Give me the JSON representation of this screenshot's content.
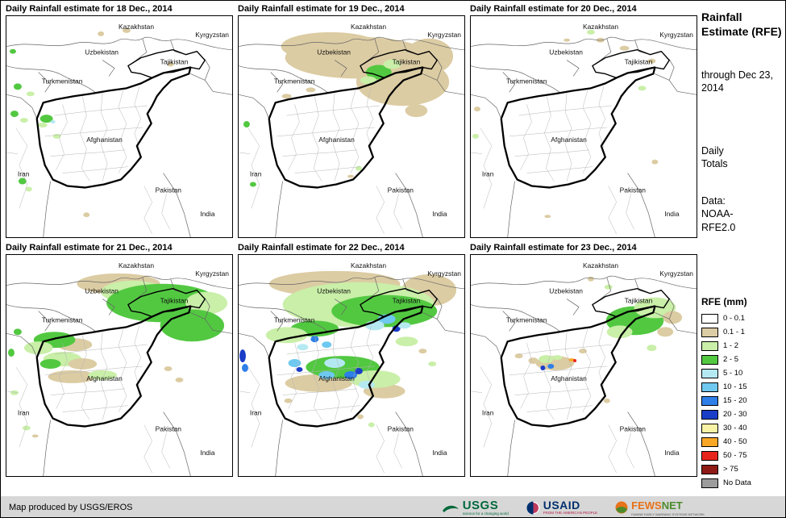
{
  "panels": [
    {
      "title": "Daily Rainfall estimate for 18 Dec., 2014",
      "rain": [
        [
          118,
          22,
          4,
          3,
          "t"
        ],
        [
          150,
          18,
          5,
          3,
          "t"
        ],
        [
          205,
          60,
          4,
          3,
          "t"
        ],
        [
          8,
          44,
          4,
          3,
          "g2"
        ],
        [
          14,
          88,
          5,
          4,
          "g2"
        ],
        [
          30,
          97,
          5,
          3,
          "g1"
        ],
        [
          10,
          122,
          5,
          4,
          "g2"
        ],
        [
          22,
          130,
          5,
          3,
          "g1"
        ],
        [
          50,
          128,
          8,
          5,
          "g2"
        ],
        [
          45,
          136,
          6,
          3,
          "g1"
        ],
        [
          58,
          132,
          3,
          2,
          "b1"
        ],
        [
          63,
          150,
          5,
          3,
          "g1"
        ],
        [
          20,
          206,
          5,
          4,
          "g2"
        ],
        [
          28,
          216,
          4,
          3,
          "g1"
        ],
        [
          100,
          248,
          4,
          3,
          "t"
        ]
      ]
    },
    {
      "title": "Daily Rainfall estimate for 19 Dec., 2014",
      "rain": [
        [
          150,
          52,
          92,
          26,
          "t"
        ],
        [
          205,
          82,
          58,
          30,
          "t"
        ],
        [
          115,
          38,
          62,
          18,
          "t"
        ],
        [
          238,
          50,
          30,
          22,
          "t"
        ],
        [
          222,
          118,
          14,
          8,
          "t"
        ],
        [
          90,
          92,
          6,
          3,
          "t"
        ],
        [
          60,
          100,
          6,
          3,
          "t"
        ],
        [
          175,
          70,
          16,
          9,
          "g2"
        ],
        [
          192,
          60,
          11,
          6,
          "g1"
        ],
        [
          162,
          80,
          10,
          5,
          "g1"
        ],
        [
          10,
          135,
          4,
          4,
          "g2"
        ],
        [
          150,
          190,
          4,
          3,
          "g1"
        ],
        [
          140,
          200,
          4,
          2,
          "t"
        ],
        [
          18,
          210,
          4,
          3,
          "g2"
        ]
      ]
    },
    {
      "title": "Daily Rainfall estimate for 20 Dec., 2014",
      "rain": [
        [
          150,
          20,
          5,
          3,
          "g1"
        ],
        [
          162,
          30,
          5,
          3,
          "t"
        ],
        [
          120,
          30,
          4,
          2,
          "t"
        ],
        [
          192,
          40,
          6,
          3,
          "t"
        ],
        [
          226,
          56,
          5,
          3,
          "t"
        ],
        [
          214,
          90,
          5,
          3,
          "g1"
        ],
        [
          8,
          116,
          4,
          3,
          "t"
        ],
        [
          6,
          150,
          4,
          3,
          "g1"
        ],
        [
          96,
          250,
          4,
          2,
          "t"
        ],
        [
          230,
          182,
          4,
          3,
          "t"
        ]
      ]
    },
    {
      "title": "Daily Rainfall estimate for 21 Dec., 2014",
      "rain": [
        [
          140,
          36,
          52,
          13,
          "t"
        ],
        [
          158,
          46,
          40,
          14,
          "g1"
        ],
        [
          195,
          60,
          70,
          24,
          "g2"
        ],
        [
          250,
          60,
          26,
          14,
          "g1"
        ],
        [
          232,
          88,
          40,
          20,
          "g2"
        ],
        [
          85,
          112,
          22,
          8,
          "t"
        ],
        [
          60,
          106,
          26,
          10,
          "g2"
        ],
        [
          40,
          116,
          18,
          8,
          "g1"
        ],
        [
          70,
          130,
          24,
          9,
          "g1"
        ],
        [
          55,
          136,
          13,
          6,
          "g2"
        ],
        [
          95,
          136,
          18,
          7,
          "t"
        ],
        [
          82,
          152,
          30,
          8,
          "t"
        ],
        [
          120,
          150,
          18,
          6,
          "g1"
        ],
        [
          14,
          96,
          5,
          4,
          "g2"
        ],
        [
          6,
          122,
          4,
          5,
          "g2"
        ],
        [
          10,
          172,
          5,
          3,
          "g1"
        ],
        [
          25,
          216,
          5,
          3,
          "g1"
        ],
        [
          36,
          226,
          4,
          2,
          "t"
        ],
        [
          202,
          142,
          5,
          3,
          "t"
        ],
        [
          216,
          156,
          5,
          3,
          "t"
        ]
      ]
    },
    {
      "title": "Daily Rainfall estimate for 22 Dec., 2014",
      "rain": [
        [
          120,
          36,
          82,
          16,
          "t"
        ],
        [
          238,
          44,
          34,
          20,
          "t"
        ],
        [
          150,
          62,
          95,
          28,
          "g1"
        ],
        [
          182,
          70,
          66,
          20,
          "g2"
        ],
        [
          95,
          92,
          30,
          10,
          "g2"
        ],
        [
          60,
          100,
          26,
          10,
          "g1"
        ],
        [
          210,
          108,
          14,
          6,
          "g1"
        ],
        [
          100,
          160,
          42,
          11,
          "t"
        ],
        [
          182,
          170,
          26,
          9,
          "t"
        ],
        [
          130,
          140,
          46,
          14,
          "g2"
        ],
        [
          170,
          155,
          32,
          11,
          "g1"
        ],
        [
          185,
          80,
          11,
          6,
          "b2"
        ],
        [
          170,
          88,
          12,
          6,
          "b1"
        ],
        [
          197,
          92,
          5,
          4,
          "b4"
        ],
        [
          207,
          88,
          8,
          4,
          "b1"
        ],
        [
          95,
          105,
          5,
          4,
          "b3"
        ],
        [
          110,
          112,
          6,
          4,
          "b2"
        ],
        [
          80,
          115,
          7,
          4,
          "b1"
        ],
        [
          5,
          126,
          4,
          8,
          "b4"
        ],
        [
          8,
          141,
          4,
          5,
          "b3"
        ],
        [
          120,
          135,
          13,
          6,
          "b1"
        ],
        [
          140,
          150,
          8,
          5,
          "b3"
        ],
        [
          150,
          145,
          5,
          4,
          "b4"
        ],
        [
          110,
          150,
          10,
          5,
          "b2"
        ],
        [
          160,
          162,
          10,
          5,
          "b1"
        ],
        [
          70,
          135,
          8,
          5,
          "b2"
        ],
        [
          76,
          143,
          4,
          3,
          "b4"
        ],
        [
          230,
          120,
          5,
          3,
          "t"
        ],
        [
          242,
          136,
          5,
          3,
          "g1"
        ],
        [
          152,
          202,
          4,
          3,
          "t"
        ],
        [
          166,
          212,
          4,
          3,
          "g1"
        ],
        [
          62,
          182,
          5,
          3,
          "t"
        ]
      ]
    },
    {
      "title": "Daily Rainfall estimate for 23 Dec., 2014",
      "rain": [
        [
          205,
          82,
          36,
          18,
          "g2"
        ],
        [
          230,
          66,
          26,
          13,
          "g1"
        ],
        [
          186,
          96,
          16,
          8,
          "g1"
        ],
        [
          243,
          96,
          10,
          6,
          "t"
        ],
        [
          252,
          78,
          12,
          8,
          "t"
        ],
        [
          150,
          30,
          4,
          3,
          "t"
        ],
        [
          172,
          40,
          5,
          3,
          "g1"
        ],
        [
          105,
          135,
          24,
          9,
          "t"
        ],
        [
          78,
          132,
          6,
          4,
          "t"
        ],
        [
          94,
          130,
          9,
          5,
          "g1"
        ],
        [
          108,
          128,
          6,
          3,
          "g1"
        ],
        [
          100,
          139,
          4,
          3,
          "b3"
        ],
        [
          90,
          141,
          3,
          3,
          "b4"
        ],
        [
          126,
          131,
          4,
          2,
          "o"
        ],
        [
          130,
          132,
          2,
          2,
          "r"
        ],
        [
          140,
          120,
          5,
          3,
          "t"
        ],
        [
          60,
          126,
          5,
          3,
          "t"
        ],
        [
          226,
          116,
          6,
          4,
          "g1"
        ],
        [
          170,
          182,
          4,
          3,
          "t"
        ]
      ]
    }
  ],
  "map": {
    "countries": [
      "Kazakhstan",
      "Kyrgyzstan",
      "Uzbekistan",
      "Tajikistan",
      "Turkmenistan",
      "Afghanistan",
      "Iran",
      "Pakistan",
      "India"
    ]
  },
  "sidebar": {
    "title": "Rainfall Estimate (RFE)",
    "subtitle": "through Dec 23, 2014",
    "period": "Daily Totals",
    "source": "Data: NOAA-RFE2.0"
  },
  "legend": {
    "title": "RFE (mm)",
    "entries": [
      {
        "label": "0 - 0.1",
        "color": "#FFFFFF"
      },
      {
        "label": "0.1 - 1",
        "color": "#DCCCA3"
      },
      {
        "label": "1 - 2",
        "color": "#C9EFA8"
      },
      {
        "label": "2 - 5",
        "color": "#52C841"
      },
      {
        "label": "5 - 10",
        "color": "#B5E9F2"
      },
      {
        "label": "10 - 15",
        "color": "#6FC8F0"
      },
      {
        "label": "15 - 20",
        "color": "#2E7FE8"
      },
      {
        "label": "20 - 30",
        "color": "#1A3DC8"
      },
      {
        "label": "30 - 40",
        "color": "#F8F3A6"
      },
      {
        "label": "40 - 50",
        "color": "#F9A726"
      },
      {
        "label": "50 - 75",
        "color": "#E8251C"
      },
      {
        "label": "> 75",
        "color": "#8E1B15"
      },
      {
        "label": "No Data",
        "color": "#9C9C9C"
      }
    ]
  },
  "footer": {
    "credit": "Map produced by USGS/EROS",
    "logos": {
      "usgs": {
        "text": "USGS",
        "tagline": "science for a changing world"
      },
      "usaid": {
        "text": "USAID",
        "tagline": "FROM THE AMERICAN PEOPLE"
      },
      "fewsnet": {
        "text1": "FEWS",
        "text2": "NET",
        "tagline": "FAMINE EARLY WARNING SYSTEMS NETWORK"
      }
    }
  }
}
